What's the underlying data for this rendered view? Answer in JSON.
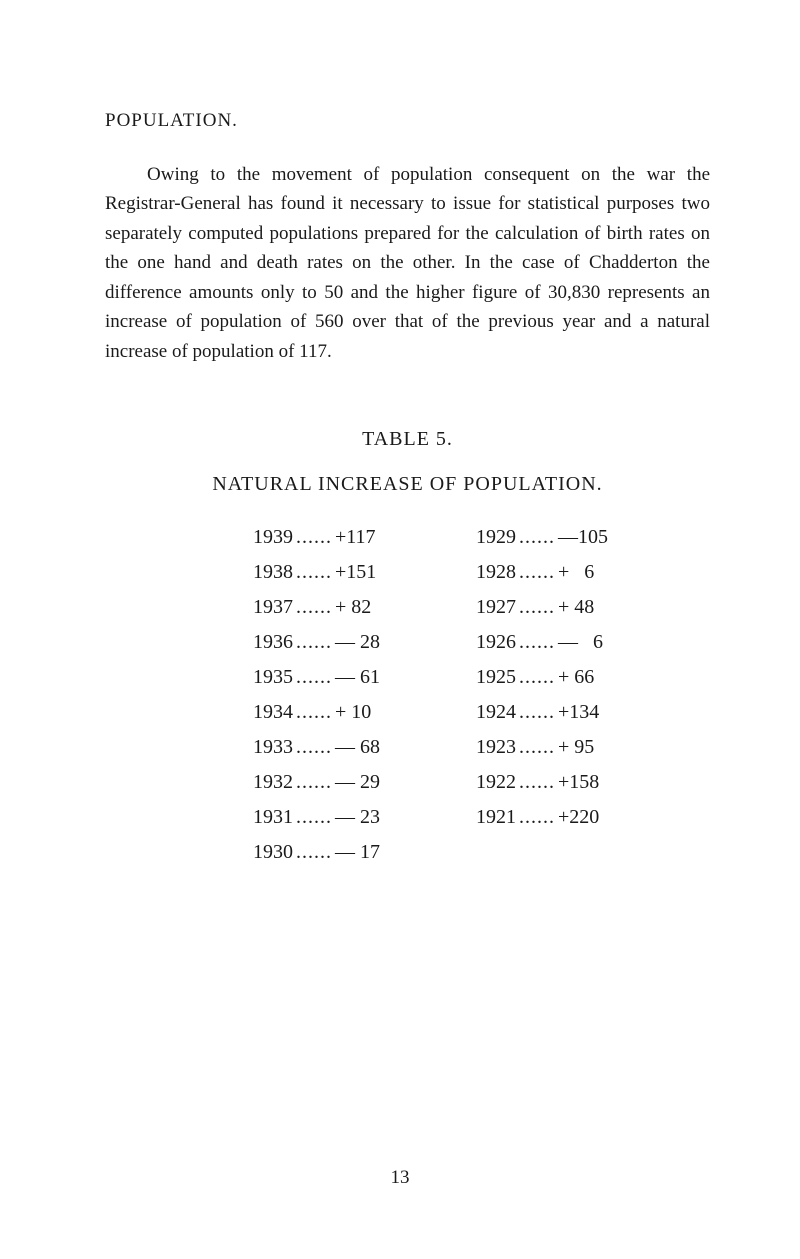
{
  "section_title": "POPULATION.",
  "paragraph": "Owing to the movement of population consequent on the war the Registrar-General has found it necessary to issue for statistical purposes two separately computed populations prepared for the calculation of birth rates on the one hand and death rates on the other. In the case of Chadderton the difference amounts only to 50 and the higher figure of 30,830 represents an increase of population of 560 over that of the previous year and a natural increase of population of 117.",
  "table_title": "TABLE 5.",
  "table_subtitle": "NATURAL INCREASE OF POPULATION.",
  "left_column": [
    {
      "year": "1939",
      "value": "+117"
    },
    {
      "year": "1938",
      "value": "+151"
    },
    {
      "year": "1937",
      "value": "+ 82"
    },
    {
      "year": "1936",
      "value": "— 28"
    },
    {
      "year": "1935",
      "value": "— 61"
    },
    {
      "year": "1934",
      "value": "+ 10"
    },
    {
      "year": "1933",
      "value": "— 68"
    },
    {
      "year": "1932",
      "value": "— 29"
    },
    {
      "year": "1931",
      "value": "— 23"
    },
    {
      "year": "1930",
      "value": "— 17"
    }
  ],
  "right_column": [
    {
      "year": "1929",
      "value": "—105"
    },
    {
      "year": "1928",
      "value": "+   6"
    },
    {
      "year": "1927",
      "value": "+ 48"
    },
    {
      "year": "1926",
      "value": "—   6"
    },
    {
      "year": "1925",
      "value": "+ 66"
    },
    {
      "year": "1924",
      "value": "+134"
    },
    {
      "year": "1923",
      "value": "+ 95"
    },
    {
      "year": "1922",
      "value": "+158"
    },
    {
      "year": "1921",
      "value": "+220"
    }
  ],
  "dots": "......",
  "page_number": "13"
}
